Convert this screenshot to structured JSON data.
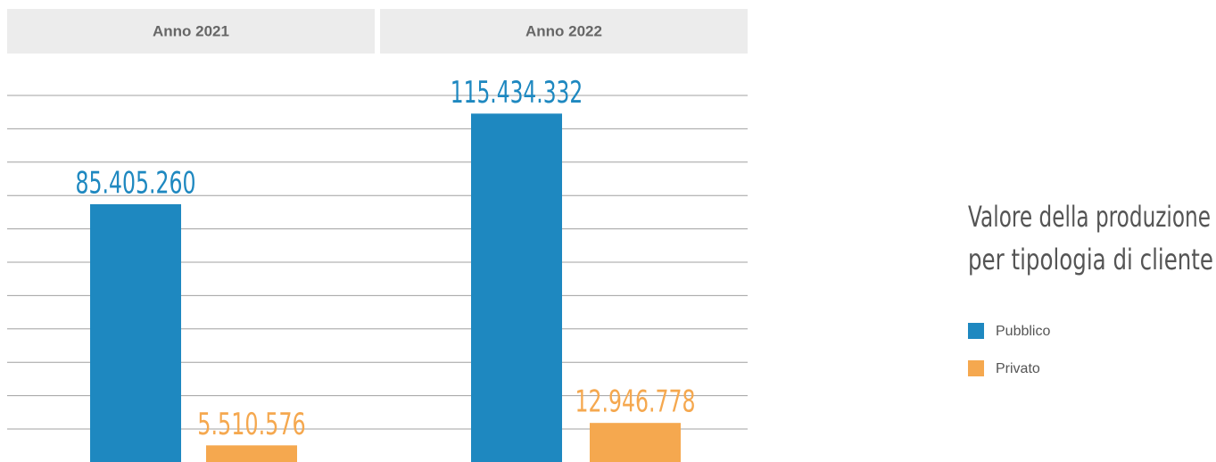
{
  "chart_data": {
    "type": "bar",
    "title": [
      "Valore della produzione",
      "per tipologia di cliente"
    ],
    "categories": [
      "Anno 2021",
      "Anno 2022"
    ],
    "series": [
      {
        "name": "Pubblico",
        "color": "#1e88c0",
        "values": [
          85405260,
          115434332
        ],
        "value_labels": [
          "85.405.260",
          "115.434.332"
        ]
      },
      {
        "name": "Privato",
        "color": "#f5a84f",
        "values": [
          5510576,
          12946778
        ],
        "value_labels": [
          "5.510.576",
          "12.946.778"
        ]
      }
    ],
    "ylim": [
      0,
      125000000
    ]
  }
}
